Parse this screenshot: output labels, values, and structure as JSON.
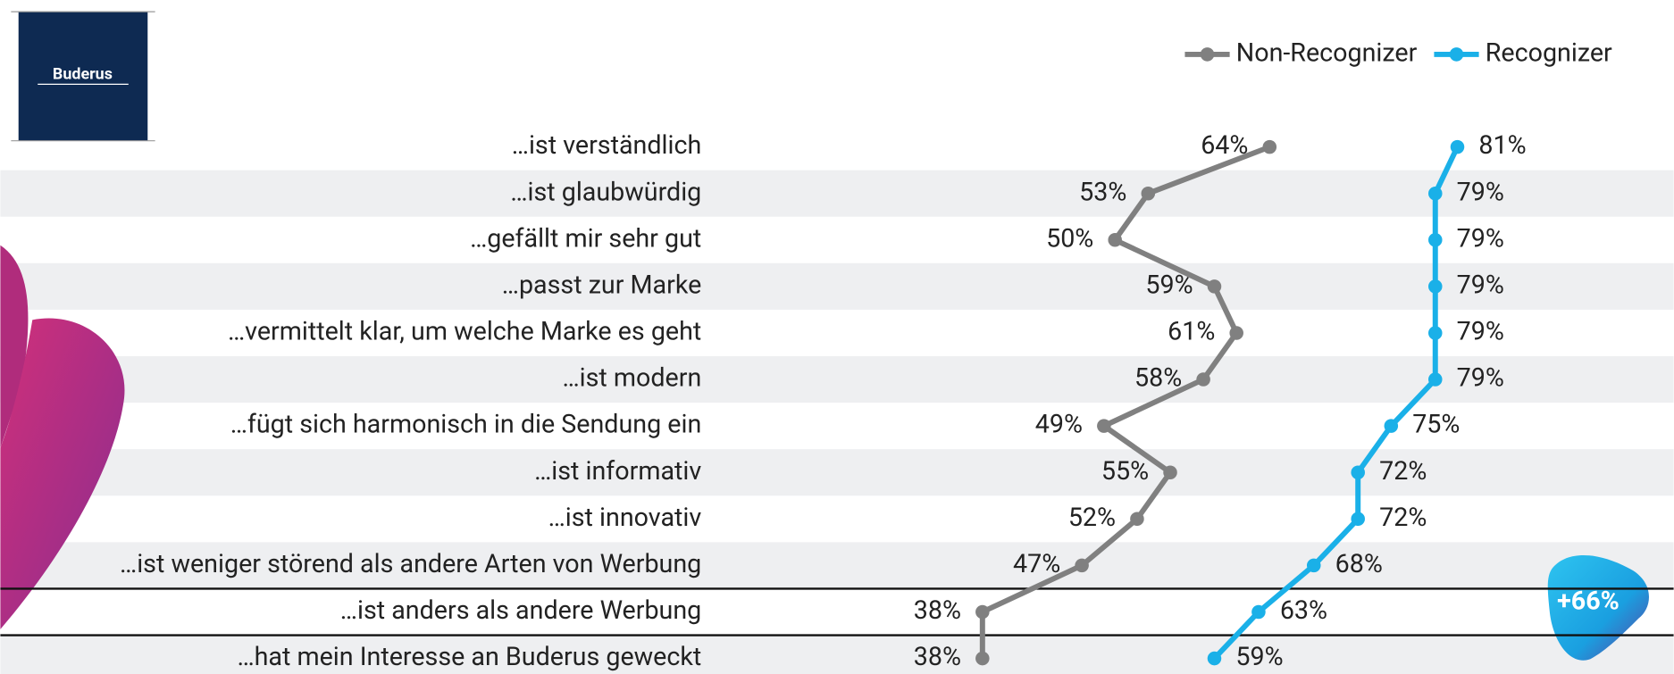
{
  "logo": "Buderus",
  "badge": "+66%",
  "chart_data": {
    "type": "line",
    "orientation": "horizontal",
    "categories": [
      "…ist verständlich",
      "…ist glaubwürdig",
      "…gefällt mir sehr gut",
      "…passt zur Marke",
      "…vermittelt klar, um welche Marke es geht",
      "…ist modern",
      "…fügt sich harmonisch in die Sendung ein",
      "…ist informativ",
      "…ist innovativ",
      "…ist weniger störend als andere Arten von Werbung",
      "…ist anders als andere Werbung",
      "…hat mein Interesse an Buderus geweckt"
    ],
    "series": [
      {
        "name": "Non-Recognizer",
        "color": "#808080",
        "values": [
          64,
          53,
          50,
          59,
          61,
          58,
          49,
          55,
          52,
          47,
          38,
          38
        ],
        "value_labels": [
          "64%",
          "53%",
          "50%",
          "59%",
          "61%",
          "58%",
          "49%",
          "55%",
          "52%",
          "47%",
          "38%",
          "38%"
        ]
      },
      {
        "name": "Recognizer",
        "color": "#1ab0e8",
        "values": [
          81,
          79,
          79,
          79,
          79,
          79,
          75,
          72,
          72,
          68,
          63,
          59
        ],
        "value_labels": [
          "81%",
          "79%",
          "79%",
          "79%",
          "79%",
          "79%",
          "75%",
          "72%",
          "72%",
          "68%",
          "63%",
          "59%"
        ]
      }
    ],
    "xlim": [
      0,
      100
    ],
    "legend": "top-right"
  }
}
